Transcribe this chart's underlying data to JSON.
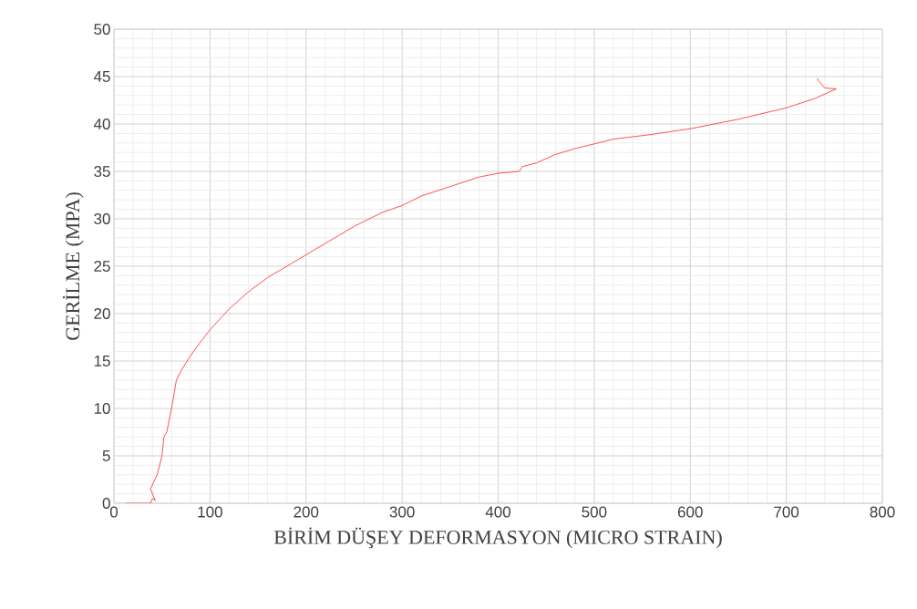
{
  "chart_data": {
    "type": "line",
    "xlabel": "BİRİM DÜŞEY DEFORMASYON (MICRO STRAIN)",
    "ylabel": "GERİLME (MPA)",
    "xlim": [
      0,
      800
    ],
    "ylim": [
      0,
      50
    ],
    "xticks": [
      0,
      100,
      200,
      300,
      400,
      500,
      600,
      700,
      800
    ],
    "yticks": [
      0,
      5,
      10,
      15,
      20,
      25,
      30,
      35,
      40,
      45,
      50
    ],
    "grid": true,
    "marker": "none",
    "line_style": "solid",
    "series": [
      {
        "color": "#ff5050",
        "x": [
          12,
          38,
          40,
          43,
          38,
          45,
          50,
          52,
          55,
          60,
          65,
          70,
          78,
          90,
          100,
          120,
          140,
          160,
          180,
          200,
          220,
          250,
          280,
          300,
          320,
          350,
          380,
          400,
          422,
          425,
          440,
          460,
          480,
          500,
          520,
          560,
          600,
          650,
          700,
          730,
          752,
          740,
          735,
          732
        ],
        "values": [
          0,
          0,
          0.5,
          0.3,
          1.5,
          3,
          5,
          7,
          7.5,
          10,
          13,
          14,
          15.3,
          17,
          18.3,
          20.5,
          22.3,
          23.8,
          25,
          26.2,
          27.4,
          29.2,
          30.7,
          31.4,
          32.4,
          33.4,
          34.4,
          34.8,
          35.0,
          35.5,
          35.9,
          36.8,
          37.4,
          37.9,
          38.4,
          38.9,
          39.5,
          40.5,
          41.7,
          42.7,
          43.7,
          43.8,
          44.4,
          44.8
        ]
      }
    ]
  }
}
